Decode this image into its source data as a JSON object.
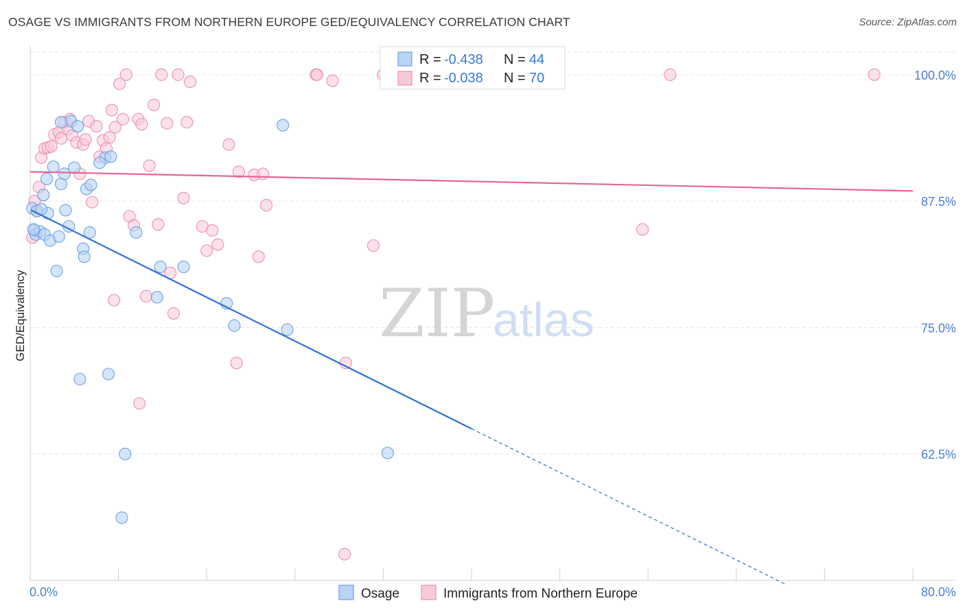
{
  "title": "OSAGE VS IMMIGRANTS FROM NORTHERN EUROPE GED/EQUIVALENCY CORRELATION CHART",
  "source": "Source: ZipAtlas.com",
  "watermark": {
    "zip": "ZIP",
    "atlas": "atlas"
  },
  "legend_box": {
    "rows": [
      {
        "r_label": "R = ",
        "r_value": "-0.438",
        "n_label": "N = ",
        "n_value": "44"
      },
      {
        "r_label": "R = ",
        "r_value": "-0.038",
        "n_label": "N = ",
        "n_value": "70"
      }
    ]
  },
  "chart_data": {
    "type": "scatter",
    "title": "OSAGE VS IMMIGRANTS FROM NORTHERN EUROPE GED/EQUIVALENCY CORRELATION CHART",
    "xlabel": "",
    "ylabel": "GED/Equivalency",
    "xlim": [
      0,
      80
    ],
    "ylim": [
      50,
      102.5
    ],
    "x_tick_labels": [
      "0.0%",
      "80.0%"
    ],
    "y_ticks": [
      62.5,
      75.0,
      87.5,
      100.0
    ],
    "y_tick_labels": [
      "62.5%",
      "75.0%",
      "87.5%",
      "100.0%"
    ],
    "grid": true,
    "colors": {
      "osage": "#6aa0e8",
      "osage_fill": "#b9d3f4",
      "osage_line": "#2f6fd6",
      "ne": "#ee8fb0",
      "ne_fill": "#f8c9d9",
      "ne_line": "#e7658f"
    },
    "series": [
      {
        "name": "Osage",
        "r": -0.438,
        "n": 44,
        "trend": {
          "x0": 0.1,
          "y0": 86.6,
          "x1": 40,
          "y1": 65.0,
          "dash_x1": 68.5,
          "dash_y1": 49.6
        },
        "points": [
          [
            0.2,
            86.8
          ],
          [
            0.4,
            84.6
          ],
          [
            0.5,
            84.2
          ],
          [
            0.6,
            86.5
          ],
          [
            0.9,
            84.5
          ],
          [
            1.2,
            88.1
          ],
          [
            1.3,
            84.2
          ],
          [
            1.5,
            89.7
          ],
          [
            1.6,
            86.3
          ],
          [
            1.8,
            83.6
          ],
          [
            2.1,
            90.9
          ],
          [
            2.6,
            84.0
          ],
          [
            2.4,
            80.6
          ],
          [
            2.8,
            89.2
          ],
          [
            3.1,
            90.2
          ],
          [
            3.2,
            86.6
          ],
          [
            3.5,
            85.0
          ],
          [
            3.7,
            95.4
          ],
          [
            4.0,
            90.8
          ],
          [
            4.3,
            94.9
          ],
          [
            4.8,
            82.8
          ],
          [
            4.9,
            82.0
          ],
          [
            5.1,
            88.7
          ],
          [
            5.4,
            84.4
          ],
          [
            5.5,
            89.1
          ],
          [
            6.8,
            91.8
          ],
          [
            7.3,
            91.9
          ],
          [
            9.6,
            84.4
          ],
          [
            11.5,
            78.0
          ],
          [
            11.8,
            81.0
          ],
          [
            13.9,
            81.0
          ],
          [
            17.8,
            77.4
          ],
          [
            18.5,
            75.2
          ],
          [
            22.9,
            95.0
          ],
          [
            23.3,
            74.8
          ],
          [
            4.5,
            69.9
          ],
          [
            7.1,
            70.4
          ],
          [
            8.6,
            62.5
          ],
          [
            8.3,
            56.2
          ],
          [
            32.4,
            62.6
          ],
          [
            0.3,
            84.7
          ],
          [
            1.0,
            86.7
          ],
          [
            2.8,
            95.3
          ],
          [
            6.3,
            91.3
          ]
        ]
      },
      {
        "name": "Immigrants from Northern Europe",
        "r": -0.038,
        "n": 70,
        "trend": {
          "x0": 0,
          "y0": 90.4,
          "x1": 80,
          "y1": 88.5
        },
        "points": [
          [
            0.2,
            83.9
          ],
          [
            0.4,
            87.5
          ],
          [
            0.6,
            86.6
          ],
          [
            0.8,
            88.9
          ],
          [
            1.0,
            91.8
          ],
          [
            1.3,
            92.7
          ],
          [
            1.6,
            92.8
          ],
          [
            1.9,
            92.9
          ],
          [
            2.2,
            94.1
          ],
          [
            2.6,
            94.3
          ],
          [
            2.8,
            93.7
          ],
          [
            3.1,
            95.3
          ],
          [
            3.4,
            94.6
          ],
          [
            3.6,
            95.6
          ],
          [
            3.8,
            94.0
          ],
          [
            4.2,
            93.3
          ],
          [
            4.5,
            90.2
          ],
          [
            4.8,
            93.1
          ],
          [
            5.0,
            93.6
          ],
          [
            5.3,
            95.4
          ],
          [
            5.6,
            87.4
          ],
          [
            6.0,
            94.9
          ],
          [
            6.3,
            91.9
          ],
          [
            6.6,
            93.5
          ],
          [
            6.9,
            92.7
          ],
          [
            7.2,
            93.8
          ],
          [
            7.4,
            96.5
          ],
          [
            7.7,
            94.8
          ],
          [
            8.1,
            99.1
          ],
          [
            8.4,
            95.6
          ],
          [
            8.7,
            100.0
          ],
          [
            9.0,
            86.0
          ],
          [
            9.4,
            85.1
          ],
          [
            9.8,
            95.6
          ],
          [
            10.1,
            95.1
          ],
          [
            10.5,
            78.1
          ],
          [
            10.8,
            91.0
          ],
          [
            11.2,
            97.0
          ],
          [
            11.6,
            85.2
          ],
          [
            11.9,
            100.0
          ],
          [
            12.4,
            95.2
          ],
          [
            12.7,
            80.4
          ],
          [
            13.0,
            76.4
          ],
          [
            13.4,
            100.0
          ],
          [
            13.9,
            87.8
          ],
          [
            14.2,
            95.3
          ],
          [
            14.5,
            99.3
          ],
          [
            15.6,
            85.0
          ],
          [
            16.0,
            82.6
          ],
          [
            16.5,
            84.6
          ],
          [
            17.0,
            83.2
          ],
          [
            18.0,
            93.1
          ],
          [
            18.7,
            71.5
          ],
          [
            18.9,
            90.4
          ],
          [
            20.3,
            90.1
          ],
          [
            20.7,
            82.0
          ],
          [
            21.1,
            90.2
          ],
          [
            21.4,
            87.1
          ],
          [
            25.9,
            100.0
          ],
          [
            26.0,
            100.0
          ],
          [
            27.4,
            99.4
          ],
          [
            28.5,
            52.6
          ],
          [
            28.6,
            71.5
          ],
          [
            31.1,
            83.1
          ],
          [
            32.0,
            100.0
          ],
          [
            55.5,
            84.7
          ],
          [
            58.0,
            100.0
          ],
          [
            76.5,
            100.0
          ],
          [
            7.6,
            77.7
          ],
          [
            9.9,
            67.5
          ]
        ]
      }
    ]
  },
  "bottom_legend": {
    "items": [
      "Osage",
      "Immigrants from Northern Europe"
    ]
  }
}
